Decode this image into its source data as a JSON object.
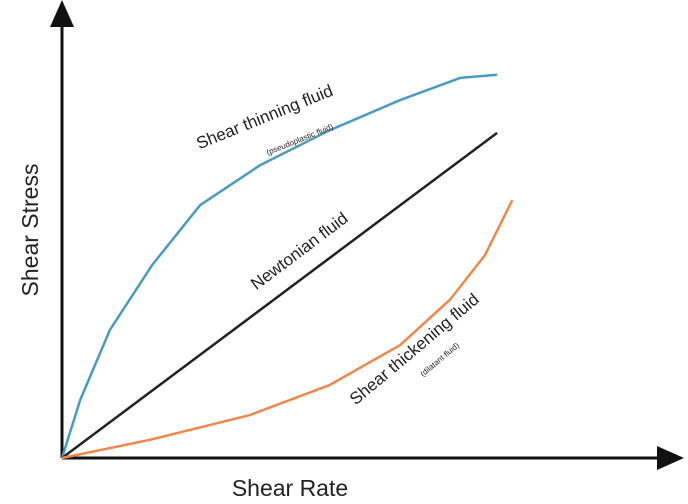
{
  "chart_data": {
    "type": "line",
    "x_label": "Shear Rate",
    "y_label": "Shear Stress",
    "xlim": [
      0,
      100
    ],
    "ylim": [
      0,
      100
    ],
    "series": [
      {
        "name": "Shear thinning fluid",
        "annotation": "(pseudoplastic fluid)",
        "color": "#4a9bc4",
        "x": [
          0,
          3,
          7.9,
          14.9,
          22.8,
          32.7,
          44.2,
          55.8,
          65.7,
          71.8
        ],
        "values": [
          0,
          13.1,
          28.9,
          43.6,
          57.1,
          66.1,
          74,
          80.8,
          85.8,
          86.5
        ]
      },
      {
        "name": "Newtonian fluid",
        "color": "#222222",
        "x": [
          0,
          71.8
        ],
        "values": [
          0,
          73.4
        ]
      },
      {
        "name": "Shear thickening fluid",
        "annotation": "(dilatant fluid)",
        "color": "#f0874a",
        "x": [
          0,
          14.5,
          31,
          44.2,
          55.8,
          64,
          69.8,
          74.3
        ],
        "values": [
          0,
          4.1,
          9.7,
          16.5,
          25.5,
          35.7,
          45.8,
          58.2
        ]
      }
    ]
  }
}
